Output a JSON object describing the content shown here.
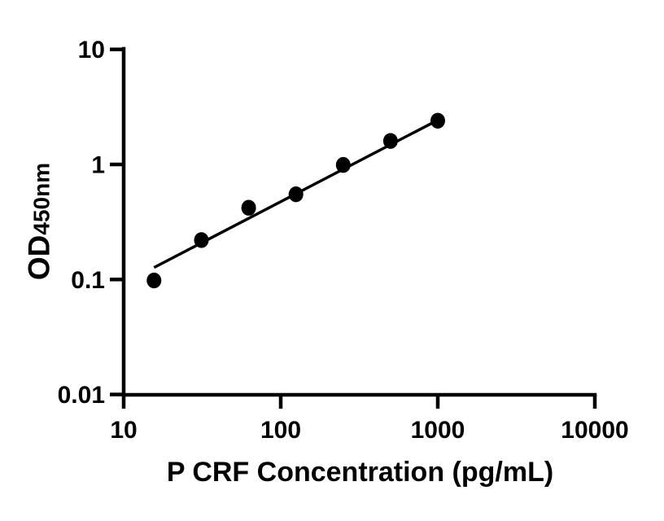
{
  "figure": {
    "background": "#ffffff",
    "ink": "#000000"
  },
  "chart_data": {
    "type": "scatter",
    "title": "",
    "xlabel": "P CRF Concentration (pg/mL)",
    "ylabel_main": "OD",
    "ylabel_sub": "450nm",
    "x_scale": "log10",
    "y_scale": "log10",
    "xlim": [
      10,
      10000
    ],
    "ylim": [
      0.01,
      10
    ],
    "grid": false,
    "legend": false,
    "x_ticks": [
      {
        "v": 10,
        "label": "10"
      },
      {
        "v": 100,
        "label": "100"
      },
      {
        "v": 1000,
        "label": "1000"
      },
      {
        "v": 10000,
        "label": "10000"
      }
    ],
    "y_ticks": [
      {
        "v": 10,
        "label": "10"
      },
      {
        "v": 1,
        "label": "1"
      },
      {
        "v": 0.1,
        "label": "0.1"
      },
      {
        "v": 0.01,
        "label": "0.01"
      }
    ],
    "series": [
      {
        "name": "fit-line",
        "type": "line",
        "color": "#000000",
        "x": [
          15.6,
          1000
        ],
        "y": [
          0.127,
          2.43
        ]
      },
      {
        "name": "standard-points",
        "type": "scatter",
        "marker": "filled-circle",
        "color": "#000000",
        "x": [
          15.6,
          31.25,
          62.5,
          125,
          250,
          500,
          1000
        ],
        "y": [
          0.098,
          0.22,
          0.42,
          0.55,
          0.99,
          1.6,
          2.4
        ]
      }
    ]
  }
}
